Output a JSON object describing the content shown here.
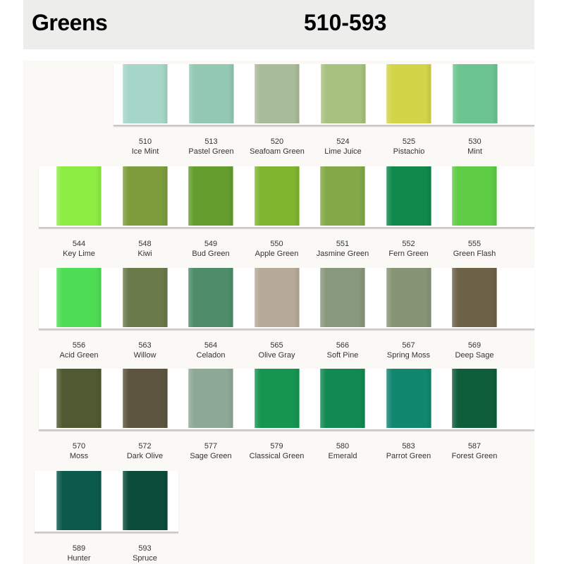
{
  "header": {
    "title": "Greens",
    "range": "510-593"
  },
  "rows": [
    [
      {
        "code": "510",
        "name": "Ice Mint",
        "color": "#a6d6c7"
      },
      {
        "code": "513",
        "name": "Pastel Green",
        "color": "#93c9b2"
      },
      {
        "code": "520",
        "name": "Seafoam Green",
        "color": "#a9bc99"
      },
      {
        "code": "524",
        "name": "Lime Juice",
        "color": "#a7c17e"
      },
      {
        "code": "525",
        "name": "Pistachio",
        "color": "#d3d549"
      },
      {
        "code": "530",
        "name": "Mint",
        "color": "#6cc590"
      }
    ],
    [
      {
        "code": "544",
        "name": "Key Lime",
        "color": "#8cec42"
      },
      {
        "code": "548",
        "name": "Kiwi",
        "color": "#7d9c3c"
      },
      {
        "code": "549",
        "name": "Bud Green",
        "color": "#649e2e"
      },
      {
        "code": "550",
        "name": "Apple Green",
        "color": "#7fb52f"
      },
      {
        "code": "551",
        "name": "Jasmine Green",
        "color": "#83a848"
      },
      {
        "code": "552",
        "name": "Fern Green",
        "color": "#10894d"
      },
      {
        "code": "555",
        "name": "Green Flash",
        "color": "#5fcc45"
      }
    ],
    [
      {
        "code": "556",
        "name": "Acid Green",
        "color": "#4fdd55"
      },
      {
        "code": "563",
        "name": "Willow",
        "color": "#6a7a4b"
      },
      {
        "code": "564",
        "name": "Celadon",
        "color": "#4e8c6a"
      },
      {
        "code": "565",
        "name": "Olive Gray",
        "color": "#b5aa98"
      },
      {
        "code": "566",
        "name": "Soft Pine",
        "color": "#88987c"
      },
      {
        "code": "567",
        "name": "Spring Moss",
        "color": "#889575"
      },
      {
        "code": "569",
        "name": "Deep Sage",
        "color": "#6c6247"
      }
    ],
    [
      {
        "code": "570",
        "name": "Moss",
        "color": "#4f5a33"
      },
      {
        "code": "572",
        "name": "Dark Olive",
        "color": "#5d5540"
      },
      {
        "code": "577",
        "name": "Sage Green",
        "color": "#8ea896"
      },
      {
        "code": "579",
        "name": "Classical Green",
        "color": "#159550"
      },
      {
        "code": "580",
        "name": "Emerald",
        "color": "#118a51"
      },
      {
        "code": "583",
        "name": "Parrot Green",
        "color": "#11876f"
      },
      {
        "code": "587",
        "name": "Forest Green",
        "color": "#0e5e3b"
      }
    ],
    [
      {
        "code": "589",
        "name": "Hunter",
        "color": "#0c5a4b"
      },
      {
        "code": "593",
        "name": "Spruce",
        "color": "#0b4d3a"
      }
    ]
  ]
}
